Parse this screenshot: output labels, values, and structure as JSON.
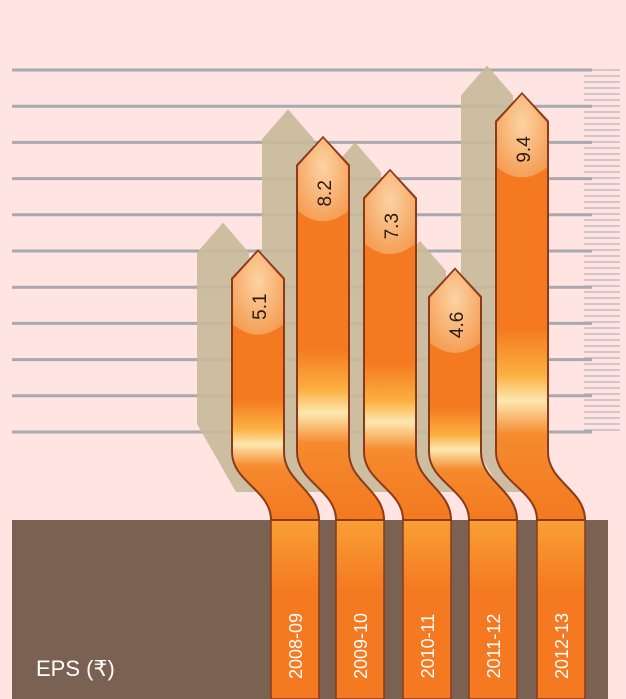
{
  "chart_data": {
    "type": "bar",
    "categories": [
      "2008-09",
      "2009-10",
      "2010-11",
      "2011-12",
      "2012-13"
    ],
    "values": [
      5.1,
      8.2,
      7.3,
      4.6,
      9.4
    ],
    "title": "EPS (₹)",
    "xlabel": "",
    "ylabel": "",
    "grid": true,
    "legend": "none",
    "colors": {
      "background": "#ffe4e1",
      "base": "#7b6152",
      "bar": "#f47920",
      "bar_light": "#fde7b0",
      "bar_edge": "#8b3a1a",
      "shadow": "#c9b99a",
      "grid": "#a8a8ae"
    }
  }
}
